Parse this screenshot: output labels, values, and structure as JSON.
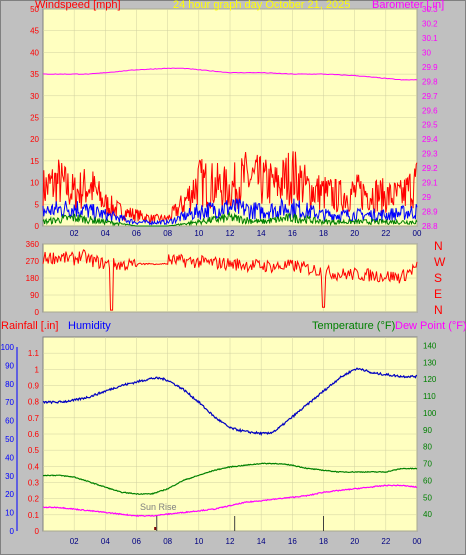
{
  "header": {
    "wind_label": "Windspeed [mph]",
    "title": "24 hour graph day   October 21, 2025",
    "baro_label": "Barometer [.in]"
  },
  "middle": {
    "right_labels": [
      "N",
      "W",
      "S",
      "E",
      "N"
    ]
  },
  "bottom_header": {
    "rain_label": "Rainfall [.in]",
    "hum_label": "Humidity",
    "temp_label": "Temperature (°F)",
    "dew_label": "Dew Point (°F)"
  },
  "annotation": {
    "sunrise": "Sun Rise"
  },
  "colors": {
    "plot_bg": "#ffffc0",
    "frame_bg": "#c0c0c0",
    "wind": "#ff0000",
    "wind_avg": "#0000ff",
    "wind_low": "#008000",
    "barometer": "#ff00ff",
    "direction": "#ff0000",
    "humidity": "#0000c0",
    "temperature": "#008000",
    "dewpoint": "#ff00ff",
    "title": "#ffff00",
    "grid": "#d0d0a0"
  },
  "chart_data": [
    {
      "type": "line",
      "title": "24 hour graph day   October 21, 2025",
      "x_ticks": [
        "02",
        "04",
        "06",
        "08",
        "10",
        "12",
        "14",
        "16",
        "18",
        "20",
        "22",
        "00"
      ],
      "ylabel": "Windspeed [mph]",
      "ylim": [
        0,
        50
      ],
      "y_ticks": [
        "0",
        "5",
        "10",
        "15",
        "20",
        "25",
        "30",
        "35",
        "40",
        "45",
        "50"
      ],
      "y2label": "Barometer [.in]",
      "y2lim": [
        28.8,
        30.3
      ],
      "y2_ticks": [
        "28.8",
        "28.9",
        "29",
        "29.1",
        "29.2",
        "29.3",
        "29.4",
        "29.5",
        "29.6",
        "29.7",
        "29.8",
        "29.9",
        "30",
        "30.1",
        "30.2",
        "30.3"
      ],
      "series": [
        {
          "name": "Barometer [.in]",
          "axis": "right",
          "x": [
            0,
            3,
            6,
            8,
            9,
            10,
            12,
            14,
            16,
            18,
            20,
            22,
            23,
            24
          ],
          "values": [
            29.85,
            29.85,
            29.88,
            29.89,
            29.89,
            29.88,
            29.86,
            29.86,
            29.85,
            29.85,
            29.84,
            29.82,
            29.81,
            29.81
          ]
        },
        {
          "name": "gust",
          "axis": "left",
          "x": [
            0,
            1,
            2,
            3,
            4,
            5,
            6,
            7,
            8,
            9,
            10,
            11,
            12,
            13,
            14,
            15,
            16,
            17,
            18,
            19,
            20,
            21,
            22,
            23,
            24
          ],
          "values": [
            10,
            12,
            9,
            11,
            6,
            4,
            3,
            2,
            2,
            6,
            12,
            11,
            10,
            13,
            12,
            11,
            14,
            10,
            9,
            8,
            9,
            9,
            8,
            8,
            12
          ]
        },
        {
          "name": "average",
          "axis": "left",
          "x": [
            0,
            2,
            4,
            6,
            8,
            10,
            12,
            14,
            16,
            18,
            20,
            22,
            24
          ],
          "values": [
            4,
            5,
            3,
            1,
            1,
            4,
            5,
            4,
            5,
            3,
            3,
            3,
            4
          ]
        },
        {
          "name": "low",
          "axis": "left",
          "x": [
            0,
            2,
            4,
            6,
            8,
            10,
            12,
            14,
            16,
            18,
            20,
            22,
            24
          ],
          "values": [
            1,
            2,
            1,
            0,
            0,
            1,
            2,
            1,
            2,
            1,
            1,
            1,
            1
          ]
        }
      ]
    },
    {
      "type": "line",
      "ylim": [
        0,
        360
      ],
      "y_ticks": [
        "0",
        "90",
        "180",
        "270",
        "360"
      ],
      "y2_ticks": [
        "N",
        "W",
        "S",
        "E",
        "N"
      ],
      "series": [
        {
          "name": "direction",
          "x": [
            0,
            1,
            2,
            2.5,
            3,
            4,
            5,
            6,
            6.5,
            7,
            8,
            9,
            10,
            11,
            12,
            13,
            14,
            15,
            16,
            17,
            18,
            19,
            20,
            21,
            22,
            23,
            24
          ],
          "values": [
            285,
            290,
            280,
            300,
            275,
            255,
            250,
            250,
            270,
            270,
            275,
            270,
            265,
            260,
            255,
            250,
            245,
            240,
            245,
            230,
            215,
            200,
            200,
            195,
            190,
            185,
            240
          ]
        }
      ]
    },
    {
      "type": "line",
      "x_ticks": [
        "02",
        "04",
        "06",
        "08",
        "10",
        "12",
        "14",
        "16",
        "18",
        "20",
        "22",
        "00"
      ],
      "ylabel": "Rainfall [.in]",
      "ylim": [
        0,
        1.2
      ],
      "y_ticks": [
        "0",
        "0.1",
        "0.2",
        "0.3",
        "0.4",
        "0.5",
        "0.6",
        "0.7",
        "0.8",
        "0.9",
        "1",
        "1.1"
      ],
      "y_ticks_outer": [
        "0",
        "10",
        "20",
        "30",
        "40",
        "50",
        "60",
        "70",
        "80",
        "90",
        "100"
      ],
      "y2label": "Temperature (°F)",
      "y2lim": [
        30,
        145
      ],
      "y2_ticks": [
        "40",
        "50",
        "60",
        "70",
        "80",
        "90",
        "100",
        "110",
        "120",
        "130",
        "140"
      ],
      "series": [
        {
          "name": "Humidity",
          "x": [
            0,
            1,
            2,
            3,
            4,
            5,
            6,
            7,
            7.5,
            8,
            9,
            10,
            11,
            12,
            13,
            14,
            14.5,
            15,
            16,
            17,
            18,
            19,
            20,
            20.5,
            21,
            22,
            23,
            24
          ],
          "values": [
            70,
            70,
            71,
            73,
            76,
            79,
            81,
            83,
            83,
            82,
            77,
            70,
            62,
            56,
            54,
            53,
            53,
            55,
            62,
            69,
            76,
            83,
            88,
            88,
            86,
            85,
            84,
            84
          ]
        },
        {
          "name": "Temperature (°F)",
          "x": [
            0,
            1,
            2,
            3,
            4,
            5,
            6,
            7,
            8,
            9,
            10,
            11,
            12,
            13,
            14,
            15,
            16,
            17,
            18,
            19,
            20,
            21,
            22,
            23,
            24
          ],
          "values": [
            63,
            63,
            62,
            59,
            56,
            53,
            52,
            52,
            55,
            60,
            63,
            66,
            68,
            69,
            70,
            70,
            69,
            67,
            66,
            65,
            65,
            65,
            65,
            67,
            67
          ]
        },
        {
          "name": "Dew Point (°F)",
          "x": [
            0,
            1,
            2,
            3,
            4,
            5,
            6,
            7,
            8,
            9,
            10,
            11,
            12,
            13,
            14,
            15,
            16,
            17,
            18,
            19,
            20,
            21,
            22,
            23,
            24
          ],
          "values": [
            44,
            44,
            43,
            42,
            41,
            40,
            39,
            39,
            40,
            41,
            42,
            43,
            45,
            47,
            48,
            49,
            50,
            51,
            53,
            54,
            55,
            56,
            57,
            57,
            56
          ]
        }
      ],
      "annotations": [
        {
          "text": "Sun Rise",
          "x": 7.3
        }
      ]
    }
  ]
}
